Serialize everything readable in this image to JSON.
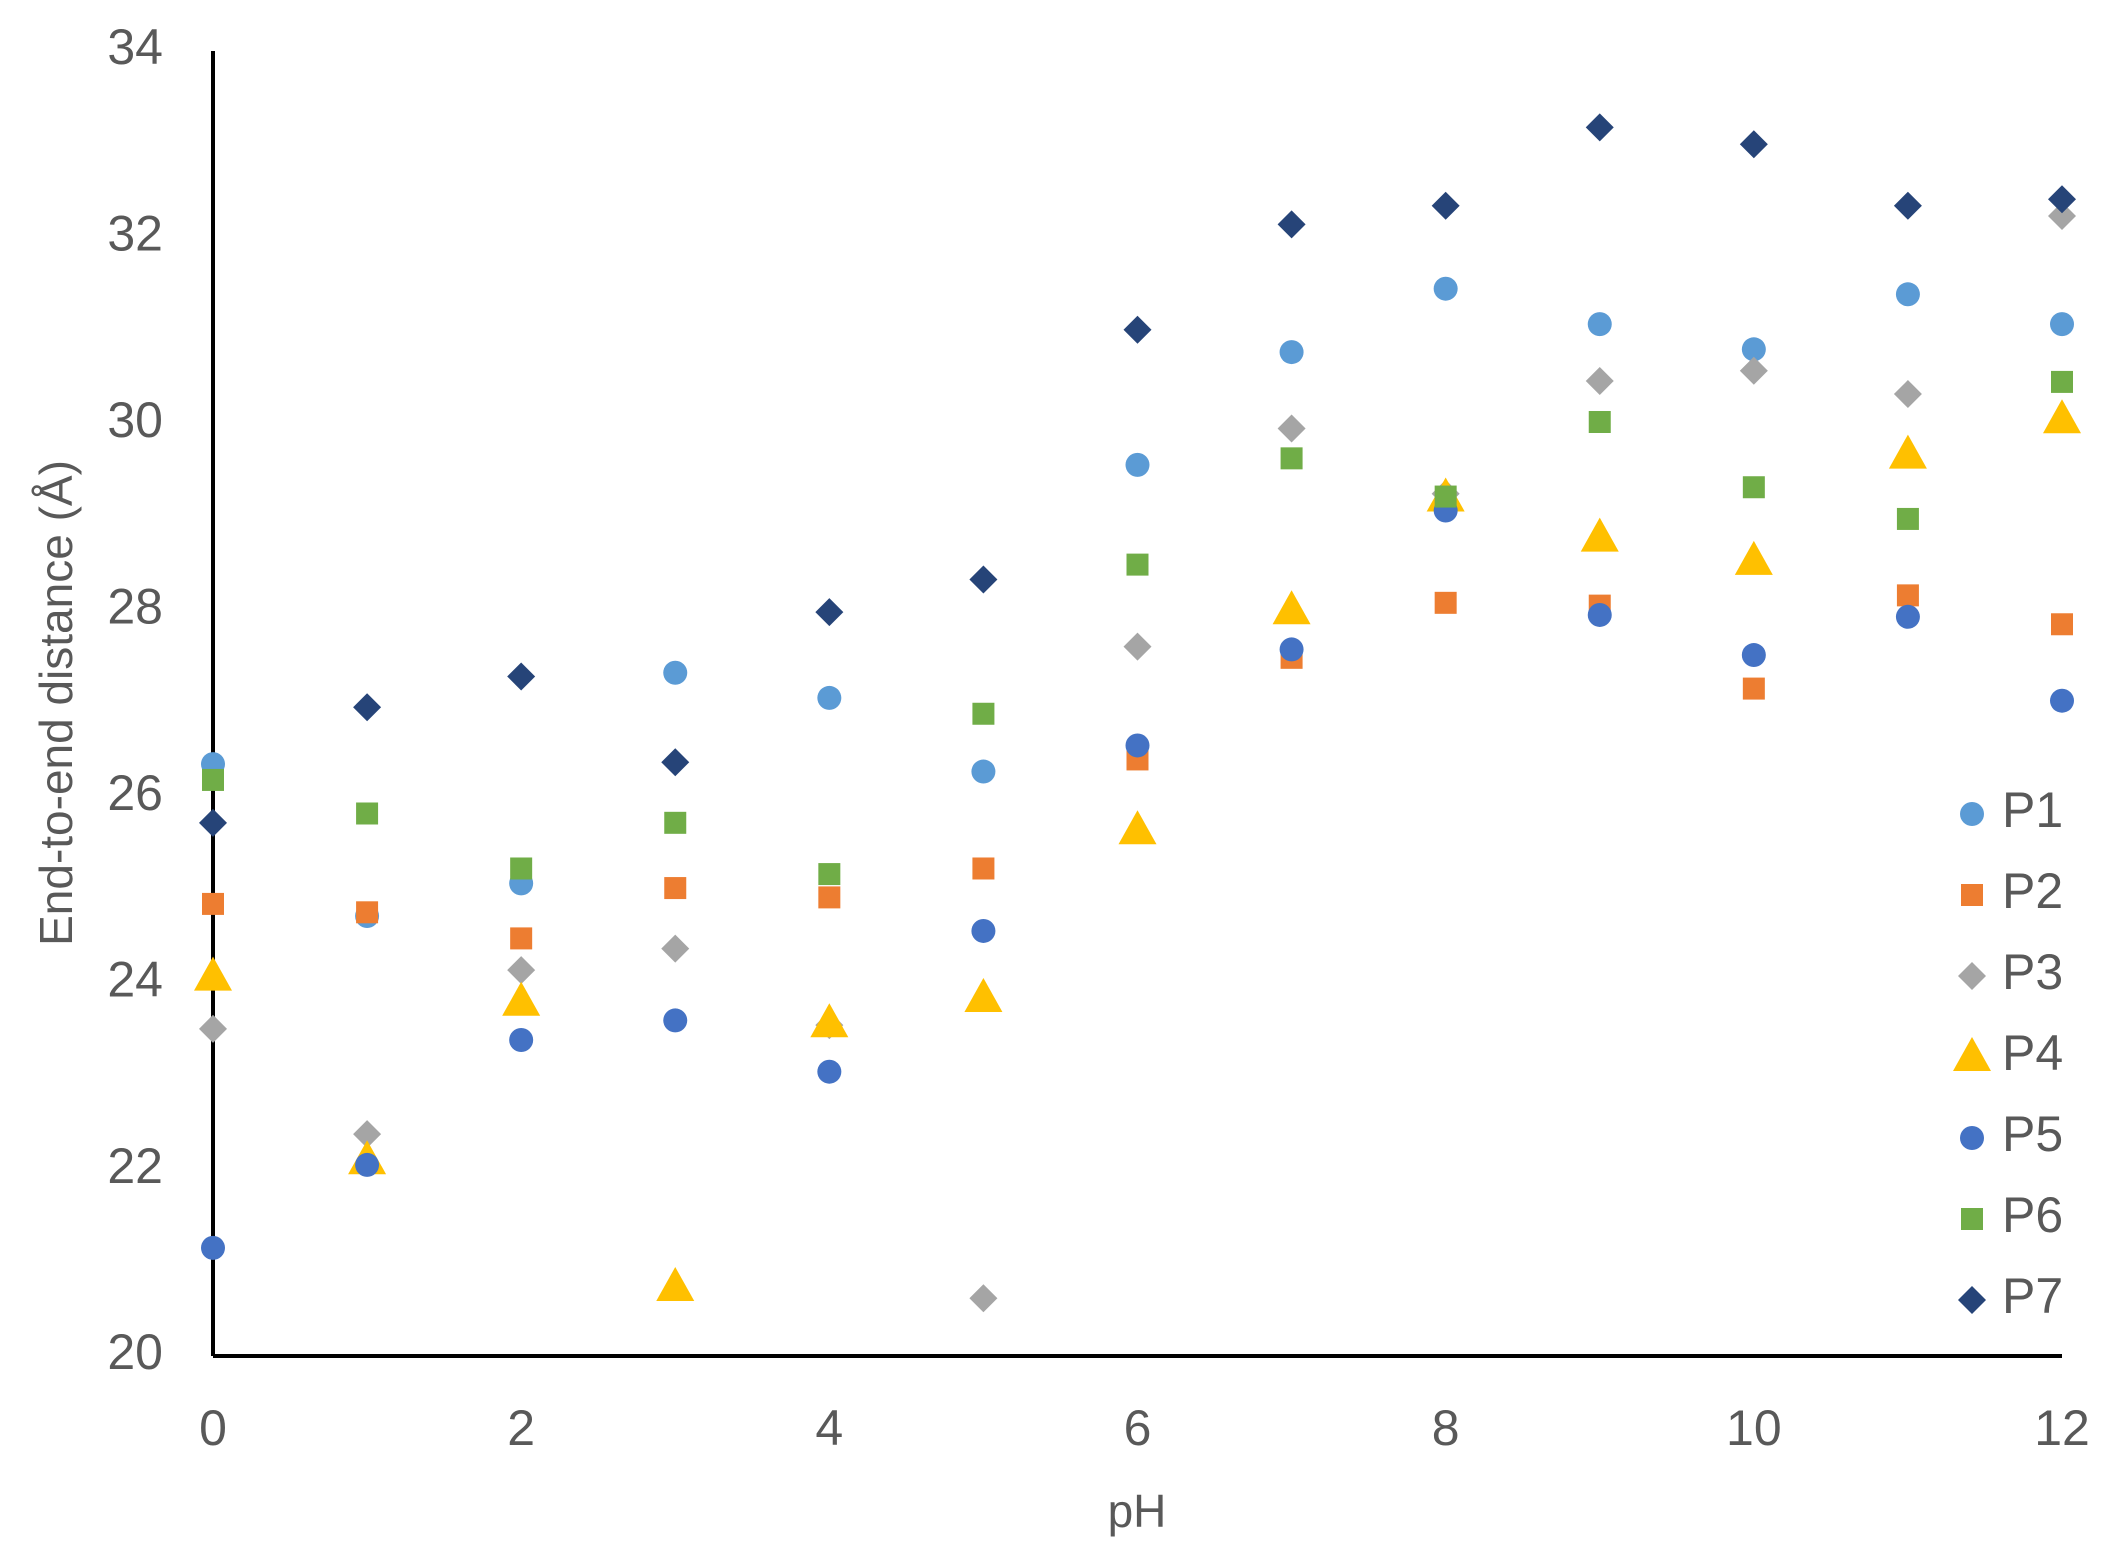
{
  "chart_data": {
    "type": "scatter",
    "xlabel": "pH",
    "ylabel": "End-to-end distance (Å)",
    "xlim": [
      0,
      12
    ],
    "xticks": [
      0,
      2,
      4,
      6,
      8,
      10,
      12
    ],
    "ylim": [
      20,
      34
    ],
    "yticks": [
      20,
      22,
      24,
      26,
      28,
      30,
      32,
      34
    ],
    "grid": false,
    "legend": "right",
    "x": [
      0,
      1,
      2,
      3,
      4,
      5,
      6,
      7,
      8,
      9,
      10,
      11,
      12
    ],
    "series": [
      {
        "name": "P1",
        "color": "#5b9bd5",
        "marker": "circle",
        "values": [
          26.35,
          24.72,
          25.07,
          27.33,
          27.06,
          26.27,
          29.56,
          30.77,
          31.45,
          31.07,
          30.8,
          31.39,
          31.07
        ]
      },
      {
        "name": "P2",
        "color": "#ed7d31",
        "marker": "square",
        "values": [
          24.85,
          24.76,
          24.48,
          25.02,
          24.92,
          25.23,
          26.4,
          27.49,
          28.08,
          28.05,
          27.16,
          28.16,
          27.85
        ]
      },
      {
        "name": "P3",
        "color": "#a5a5a5",
        "marker": "diamond",
        "values": [
          23.51,
          22.38,
          24.14,
          24.37,
          23.55,
          20.62,
          27.61,
          29.95,
          29.25,
          30.46,
          30.57,
          30.32,
          32.23
        ]
      },
      {
        "name": "P4",
        "color": "#ffc000",
        "marker": "triangle",
        "values": [
          24.07,
          22.1,
          23.8,
          20.74,
          23.57,
          23.84,
          25.64,
          28.0,
          29.21,
          28.78,
          28.53,
          29.67,
          30.05
        ]
      },
      {
        "name": "P5",
        "color": "#4472c4",
        "marker": "circle",
        "values": [
          21.16,
          22.05,
          23.39,
          23.6,
          23.05,
          24.56,
          26.55,
          27.58,
          29.07,
          27.95,
          27.52,
          27.93,
          27.03
        ]
      },
      {
        "name": "P6",
        "color": "#70ad47",
        "marker": "square",
        "values": [
          26.18,
          25.82,
          25.23,
          25.72,
          25.17,
          26.89,
          28.49,
          29.63,
          29.22,
          30.02,
          29.32,
          28.98,
          30.45
        ]
      },
      {
        "name": "P7",
        "color": "#264478",
        "marker": "diamond",
        "values": [
          25.72,
          26.96,
          27.29,
          26.37,
          27.98,
          28.33,
          31.01,
          32.14,
          32.34,
          33.18,
          33.0,
          32.34,
          32.41
        ]
      }
    ]
  }
}
